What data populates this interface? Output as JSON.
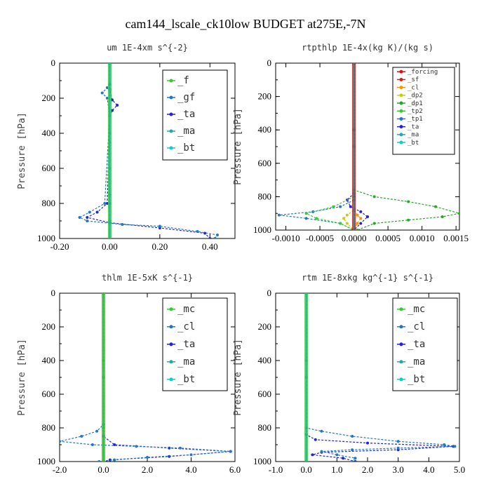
{
  "title": "cam144_lscale_ck10low  BUDGET at275E,-7N",
  "chart_data": [
    {
      "type": "line",
      "title": "um  1E-4xm s^{-2}",
      "ylabel": "Pressure [hPa]",
      "xlim": [
        -0.2,
        0.5
      ],
      "ylim": [
        1000,
        0
      ],
      "xticks": [
        -0.2,
        0.0,
        0.2,
        0.4
      ],
      "xtick_labels": [
        "-0.20",
        "0.00",
        "0.20",
        "0.40"
      ],
      "yticks": [
        0,
        200,
        400,
        600,
        800,
        1000
      ],
      "ytick_labels": [
        "0",
        "200",
        "400",
        "600",
        "800",
        "1000"
      ],
      "legend": "top-right",
      "series": [
        {
          "name": "_f",
          "color": "#33cc33",
          "x": [
            0,
            0,
            0,
            0,
            0,
            0,
            0,
            0
          ],
          "y": [
            0,
            150,
            300,
            450,
            600,
            750,
            900,
            1000
          ]
        },
        {
          "name": "_gf",
          "color": "#2277cc",
          "x": [
            0,
            0,
            -0.01,
            -0.03,
            -0.01,
            0,
            -0.02,
            -0.08,
            -0.12,
            -0.09,
            0.05,
            0.2,
            0.35,
            0.43,
            0.42
          ],
          "y": [
            0,
            120,
            140,
            170,
            200,
            300,
            800,
            850,
            880,
            900,
            920,
            930,
            960,
            980,
            1000
          ]
        },
        {
          "name": "_ta",
          "color": "#2222dd",
          "x": [
            0,
            0,
            0.01,
            0.03,
            0.01,
            0,
            -0.01,
            -0.05,
            -0.09,
            0.0,
            0.2,
            0.38,
            0.4
          ],
          "y": [
            0,
            150,
            210,
            240,
            270,
            300,
            800,
            850,
            880,
            910,
            940,
            970,
            1000
          ]
        },
        {
          "name": "_ma",
          "color": "#22aaaa",
          "x": [
            0,
            0,
            0,
            0
          ],
          "y": [
            0,
            400,
            800,
            1000
          ]
        },
        {
          "name": "_bt",
          "color": "#11cccc",
          "x": [
            0,
            0,
            0,
            0
          ],
          "y": [
            0,
            400,
            800,
            1000
          ]
        }
      ]
    },
    {
      "type": "line",
      "title": "rtpthlp  1E-4x(kg K)/(kg s)",
      "ylabel": "Pressure [hPa]",
      "xlim": [
        -0.00115,
        0.00155
      ],
      "ylim": [
        1000,
        0
      ],
      "xticks": [
        -0.001,
        -0.0005,
        0.0,
        0.0005,
        0.001,
        0.0015
      ],
      "xtick_labels": [
        "-0.0010",
        "-0.0005",
        "0.0000",
        "0.0005",
        "0.0010",
        "0.0015"
      ],
      "yticks": [
        0,
        200,
        400,
        600,
        800,
        1000
      ],
      "ytick_labels": [
        "0",
        "200",
        "400",
        "600",
        "800",
        "1000"
      ],
      "legend": "top-right",
      "series": [
        {
          "name": "_forcing",
          "color": "#dd1111",
          "x": [
            0,
            0,
            0,
            0
          ],
          "y": [
            0,
            400,
            800,
            1000
          ]
        },
        {
          "name": "_sf",
          "color": "#cc2222",
          "x": [
            0,
            0,
            0,
            0
          ],
          "y": [
            0,
            400,
            800,
            1000
          ]
        },
        {
          "name": "_cl",
          "color": "#ee9900",
          "x": [
            0,
            0,
            5e-05,
            0.0001,
            5e-05,
            0
          ],
          "y": [
            0,
            880,
            910,
            930,
            960,
            1000
          ]
        },
        {
          "name": "_dp2",
          "color": "#cccc00",
          "x": [
            0,
            0,
            -0.0001,
            -0.00015,
            -0.0001,
            0
          ],
          "y": [
            0,
            880,
            910,
            930,
            960,
            1000
          ]
        },
        {
          "name": "_dp1",
          "color": "#22aa22",
          "x": [
            0,
            0,
            0.0003,
            0.0008,
            0.0012,
            0.00155,
            0.0013,
            0.0008,
            0.0003,
            5e-05
          ],
          "y": [
            0,
            760,
            800,
            830,
            860,
            900,
            920,
            940,
            960,
            1000
          ]
        },
        {
          "name": "_tp2",
          "color": "#33cc33",
          "x": [
            0,
            0,
            -0.0003,
            -0.0007,
            -0.00055,
            -0.0002,
            0
          ],
          "y": [
            0,
            800,
            860,
            900,
            930,
            960,
            1000
          ]
        },
        {
          "name": "_tp1",
          "color": "#2277cc",
          "x": [
            0,
            0,
            -0.0002,
            -0.0006,
            -0.0011,
            -0.0007,
            -0.0002,
            0
          ],
          "y": [
            0,
            820,
            860,
            890,
            910,
            930,
            960,
            1000
          ]
        },
        {
          "name": "_ta",
          "color": "#2222dd",
          "x": [
            0,
            0,
            -0.0001,
            -5e-05,
            0.0001,
            0.0002,
            0.0001,
            0
          ],
          "y": [
            0,
            780,
            820,
            860,
            890,
            920,
            960,
            1000
          ]
        },
        {
          "name": "_ma",
          "color": "#22aaaa",
          "x": [
            0,
            0,
            0
          ],
          "y": [
            0,
            500,
            1000
          ]
        },
        {
          "name": "_bt",
          "color": "#11cccc",
          "x": [
            0,
            0,
            0
          ],
          "y": [
            0,
            500,
            1000
          ]
        }
      ]
    },
    {
      "type": "line",
      "title": "thlm  1E-5xK s^{-1}",
      "ylabel": "Pressure [hPa]",
      "xlim": [
        -2.0,
        6.0
      ],
      "ylim": [
        1000,
        0
      ],
      "xticks": [
        -2,
        0,
        2,
        4,
        6
      ],
      "xtick_labels": [
        "-2.0",
        "0.0",
        "2.0",
        "4.0",
        "6.0"
      ],
      "yticks": [
        0,
        200,
        400,
        600,
        800,
        1000
      ],
      "ytick_labels": [
        "0",
        "200",
        "400",
        "600",
        "800",
        "1000"
      ],
      "legend": "top-right",
      "series": [
        {
          "name": "_mc",
          "color": "#33cc33",
          "x": [
            0,
            0,
            0,
            0
          ],
          "y": [
            0,
            400,
            800,
            1000
          ]
        },
        {
          "name": "_cl",
          "color": "#2277cc",
          "x": [
            0,
            0,
            -0.3,
            -1.0,
            -2.0,
            -0.5,
            1.5,
            3.5,
            5.8,
            4.0,
            2.0,
            0.5,
            -0.2
          ],
          "y": [
            0,
            780,
            820,
            850,
            880,
            900,
            910,
            920,
            940,
            960,
            975,
            990,
            1000
          ]
        },
        {
          "name": "_ta",
          "color": "#2222dd",
          "x": [
            0,
            0,
            0.5,
            3.0,
            5.8,
            3.0,
            0.3,
            0
          ],
          "y": [
            0,
            850,
            900,
            920,
            940,
            970,
            990,
            1000
          ]
        },
        {
          "name": "_ma",
          "color": "#22aaaa",
          "x": [
            0,
            0,
            0
          ],
          "y": [
            0,
            500,
            1000
          ]
        },
        {
          "name": "_bt",
          "color": "#11cccc",
          "x": [
            0,
            0,
            0
          ],
          "y": [
            0,
            500,
            1000
          ]
        }
      ]
    },
    {
      "type": "line",
      "title": "rtm  1E-8xkg kg^{-1} s^{-1}",
      "ylabel": "Pressure [hPa]",
      "xlim": [
        -1.0,
        5.0
      ],
      "ylim": [
        1000,
        0
      ],
      "xticks": [
        -1,
        0,
        1,
        2,
        3,
        4,
        5
      ],
      "xtick_labels": [
        "-1.0",
        "0.0",
        "1.0",
        "2.0",
        "3.0",
        "4.0",
        "5.0"
      ],
      "yticks": [
        0,
        200,
        400,
        600,
        800,
        1000
      ],
      "ytick_labels": [
        "0",
        "200",
        "400",
        "600",
        "800",
        "1000"
      ],
      "legend": "top-right",
      "series": [
        {
          "name": "_mc",
          "color": "#33cc33",
          "x": [
            0,
            0,
            0,
            0
          ],
          "y": [
            0,
            400,
            800,
            1000
          ]
        },
        {
          "name": "_cl",
          "color": "#2277cc",
          "x": [
            0,
            0,
            0.5,
            1.5,
            3.0,
            4.5,
            4.85,
            3.0,
            1.5,
            0.5,
            1.0,
            1.6,
            1.5
          ],
          "y": [
            0,
            800,
            820,
            850,
            880,
            900,
            910,
            920,
            930,
            940,
            960,
            980,
            1000
          ]
        },
        {
          "name": "_ta",
          "color": "#2222dd",
          "x": [
            0,
            0,
            0.3,
            2.0,
            4.8,
            3.0,
            0.5,
            0.2,
            1.2,
            1.6
          ],
          "y": [
            0,
            840,
            870,
            890,
            910,
            930,
            945,
            960,
            980,
            1000
          ]
        },
        {
          "name": "_ma",
          "color": "#22aaaa",
          "x": [
            0,
            0,
            0
          ],
          "y": [
            0,
            500,
            1000
          ]
        },
        {
          "name": "_bt",
          "color": "#11cccc",
          "x": [
            0,
            0,
            0
          ],
          "y": [
            0,
            500,
            1000
          ]
        }
      ]
    }
  ]
}
